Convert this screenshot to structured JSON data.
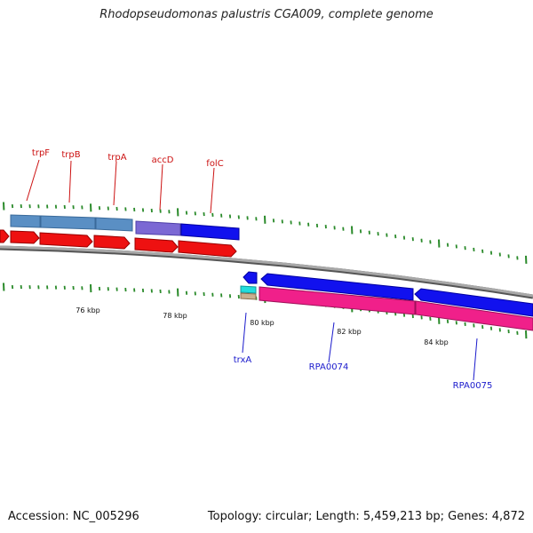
{
  "title": "Rhodopseudomonas palustris CGA009, complete genome",
  "footer": {
    "accession": "Accession: NC_005296",
    "summary": "Topology: circular; Length: 5,459,213 bp; Genes: 4,872"
  },
  "colors": {
    "backbone": "#8a8a8a",
    "ticks": "#2a8a2a",
    "forward_label": "#cc1111",
    "reverse_label": "#1a1acc",
    "cds_forward": "#ee1111",
    "cds_reverse": "#1111ee",
    "gene_steelblue": "#5a8fc4",
    "gene_purple": "#7b68d4",
    "gene_pink": "#f0208a",
    "gene_cyan": "#22dddd",
    "gene_tan": "#c8b090"
  },
  "scale_labels": [
    "76 kbp",
    "78 kbp",
    "80 kbp",
    "82 kbp",
    "84 kbp"
  ],
  "gene_labels_forward": [
    "trpF",
    "trpB",
    "trpA",
    "accD",
    "folC"
  ],
  "gene_labels_reverse": [
    "trxA",
    "RPA0074",
    "RPA0075"
  ]
}
